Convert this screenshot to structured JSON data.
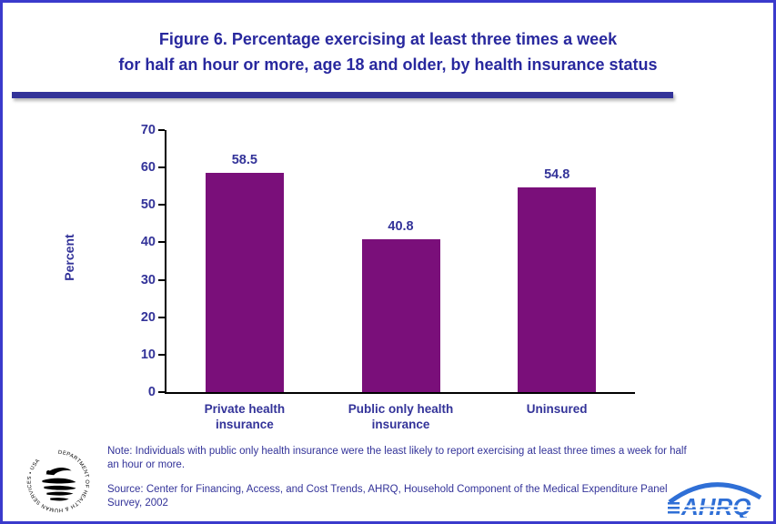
{
  "title": {
    "line1": "Figure 6. Percentage exercising at least three times a week",
    "line2": "for half an hour or more, age 18 and older, by health insurance status"
  },
  "chart_data": {
    "type": "bar",
    "categories": [
      "Private health\ninsurance",
      "Public only health\ninsurance",
      "Uninsured"
    ],
    "values": [
      58.5,
      40.8,
      54.8
    ],
    "value_labels": [
      "58.5",
      "40.8",
      "54.8"
    ],
    "title": "Figure 6. Percentage exercising at least three times a week for half an hour or more, age 18 and older, by health insurance status",
    "xlabel": "",
    "ylabel": "Percent",
    "ylim": [
      0,
      70
    ],
    "ytick_step": 10,
    "grid": "off",
    "legend": "none",
    "bar_color": "#7a0f7a"
  },
  "note": "Note: Individuals with public only health insurance were the least likely to report exercising at least three times a week for half an hour or more.",
  "source": "Source: Center for Financing, Access, and Cost Trends, AHRQ, Household Component of the Medical Expenditure Panel Survey, 2002",
  "hhs": {
    "circle_text": "DEPARTMENT OF HEALTH & HUMAN SERVICES • USA"
  },
  "ahrq": {
    "label": "AHRQ"
  },
  "colors": {
    "page_border": "#3a3acc",
    "title_text": "#28289e",
    "chart_text": "#333399",
    "bar": "#7a0f7a",
    "ahrq_blue": "#2f6fd6"
  }
}
